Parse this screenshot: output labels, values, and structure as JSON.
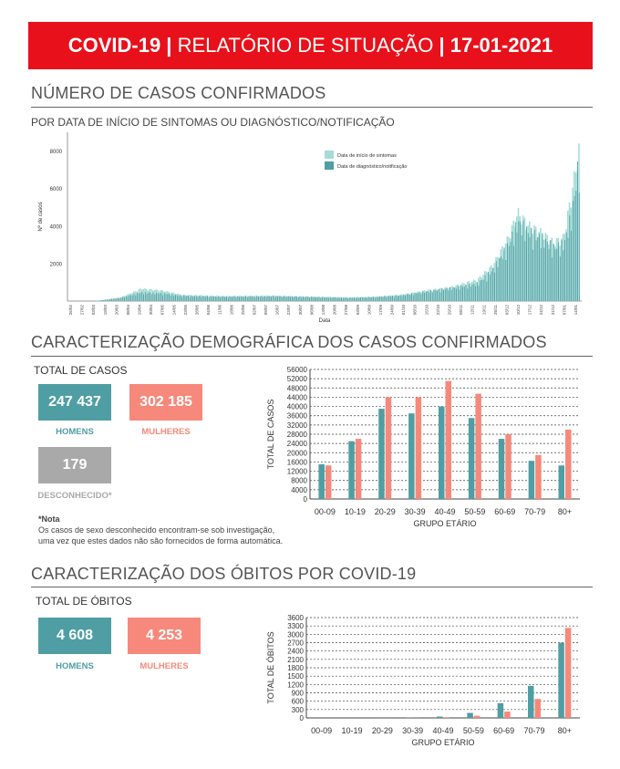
{
  "header": {
    "part1": "COVID-19 |",
    "part2": " RELATÓRIO DE SITUAÇÃO ",
    "part3": "| 17-01-2021"
  },
  "colors": {
    "teal": "#4f9ea4",
    "teal_light": "#a6dcd6",
    "salmon": "#f6897b",
    "grey": "#a9a9a9",
    "banner": "#e8111b"
  },
  "section1": {
    "title": "NÚMERO DE CASOS CONFIRMADOS",
    "subtitle": "POR DATA DE INÍCIO DE SINTOMAS OU DIAGNÓSTICO/NOTIFICAÇÃO"
  },
  "section2": {
    "title": "CARACTERIZAÇÃO DEMOGRÁFICA DOS CASOS CONFIRMADOS",
    "total_label": "TOTAL DE CASOS",
    "men_value": "247 437",
    "men_label": "HOMENS",
    "women_value": "302 185",
    "women_label": "MULHERES",
    "unknown_value": "179",
    "unknown_label": "DESCONHECIDO*",
    "note_title": "*Nota",
    "note_line1": "Os casos de sexo desconhecido encontram-se sob investigação,",
    "note_line2": "uma vez que estes dados não são fornecidos de forma automática."
  },
  "section3": {
    "title": "CARACTERIZAÇÃO DOS ÓBITOS POR COVID-19",
    "total_label": "TOTAL DE ÓBITOS",
    "men_value": "4 608",
    "men_label": "HOMENS",
    "women_value": "4 253",
    "women_label": "MULHERES"
  },
  "chart_data": [
    {
      "type": "bar",
      "title": "",
      "xlabel": "Data",
      "ylabel": "Nº de casos",
      "ylim": [
        0,
        9000
      ],
      "yticks": [
        2000,
        4000,
        6000,
        8000
      ],
      "legend": [
        "Data de início de sintomas",
        "Data de diagnóstico/notificação"
      ],
      "legend_position": "top-right",
      "x_tick_labels": [
        "26/02",
        "27/02",
        "03/03",
        "19/03",
        "20/03",
        "08/04",
        "19/04",
        "30/04",
        "07/05",
        "14/05",
        "23/05",
        "28/05",
        "04/06",
        "11/06",
        "18/06",
        "25/06",
        "02/07",
        "09/07",
        "16/07",
        "23/07",
        "30/07",
        "06/08",
        "13/08",
        "20/08",
        "27/08",
        "03/09",
        "10/09",
        "17/09",
        "24/09",
        "01/10",
        "08/10",
        "15/10",
        "22/10",
        "29/10",
        "05/11",
        "12/11",
        "19/11",
        "26/11",
        "03/12",
        "10/12",
        "17/12",
        "24/12",
        "31/12",
        "07/01",
        "14/01"
      ],
      "series": [
        {
          "name": "Data de início de sintomas",
          "anchors": [
            [
              0,
              0
            ],
            [
              0.05,
              0
            ],
            [
              0.1,
              200
            ],
            [
              0.14,
              700
            ],
            [
              0.18,
              600
            ],
            [
              0.22,
              350
            ],
            [
              0.3,
              280
            ],
            [
              0.4,
              300
            ],
            [
              0.48,
              250
            ],
            [
              0.55,
              200
            ],
            [
              0.6,
              250
            ],
            [
              0.65,
              350
            ],
            [
              0.7,
              600
            ],
            [
              0.75,
              800
            ],
            [
              0.8,
              1200
            ],
            [
              0.83,
              2000
            ],
            [
              0.86,
              3500
            ],
            [
              0.88,
              5000
            ],
            [
              0.9,
              4300
            ],
            [
              0.93,
              3800
            ],
            [
              0.95,
              3300
            ],
            [
              0.97,
              3600
            ],
            [
              0.985,
              6000
            ],
            [
              1,
              8500
            ]
          ]
        },
        {
          "name": "Data de diagnóstico/notificação",
          "anchors": [
            [
              0,
              0
            ],
            [
              0.05,
              0
            ],
            [
              0.1,
              200
            ],
            [
              0.14,
              500
            ],
            [
              0.18,
              450
            ],
            [
              0.22,
              300
            ],
            [
              0.3,
              250
            ],
            [
              0.4,
              280
            ],
            [
              0.48,
              230
            ],
            [
              0.55,
              190
            ],
            [
              0.6,
              230
            ],
            [
              0.65,
              330
            ],
            [
              0.7,
              550
            ],
            [
              0.75,
              750
            ],
            [
              0.8,
              1000
            ],
            [
              0.83,
              1800
            ],
            [
              0.86,
              3200
            ],
            [
              0.88,
              4600
            ],
            [
              0.9,
              4000
            ],
            [
              0.93,
              3600
            ],
            [
              0.95,
              3100
            ],
            [
              0.97,
              3300
            ],
            [
              0.985,
              5000
            ],
            [
              1,
              8200
            ]
          ]
        }
      ]
    },
    {
      "type": "bar",
      "title": "",
      "xlabel": "GRUPO ETÁRIO",
      "ylabel": "TOTAL DE CASOS",
      "ylim": [
        0,
        56000
      ],
      "yticks": [
        0,
        4000,
        8000,
        12000,
        16000,
        20000,
        24000,
        28000,
        32000,
        36000,
        40000,
        44000,
        48000,
        52000,
        56000
      ],
      "categories": [
        "00-09",
        "10-19",
        "20-29",
        "30-39",
        "40-49",
        "50-59",
        "60-69",
        "70-79",
        "80+"
      ],
      "series": [
        {
          "name": "HOMENS",
          "values": [
            15000,
            25000,
            39000,
            37000,
            40000,
            35000,
            26000,
            16500,
            14500
          ]
        },
        {
          "name": "MULHERES",
          "values": [
            14500,
            26000,
            44000,
            44000,
            51000,
            45500,
            28000,
            19000,
            30000
          ]
        }
      ]
    },
    {
      "type": "bar",
      "title": "",
      "xlabel": "GRUPO ETÁRIO",
      "ylabel": "TOTAL DE ÓBITOS",
      "ylim": [
        0,
        3600
      ],
      "yticks": [
        0,
        300,
        600,
        900,
        1200,
        1500,
        1800,
        2100,
        2400,
        2700,
        3000,
        3300,
        3600
      ],
      "categories": [
        "00-09",
        "10-19",
        "20-29",
        "30-39",
        "40-49",
        "50-59",
        "60-69",
        "70-79",
        "80+"
      ],
      "series": [
        {
          "name": "HOMENS",
          "values": [
            0,
            0,
            2,
            8,
            50,
            180,
            530,
            1150,
            2700
          ]
        },
        {
          "name": "MULHERES",
          "values": [
            0,
            0,
            1,
            4,
            25,
            80,
            230,
            680,
            3230
          ]
        }
      ]
    }
  ]
}
